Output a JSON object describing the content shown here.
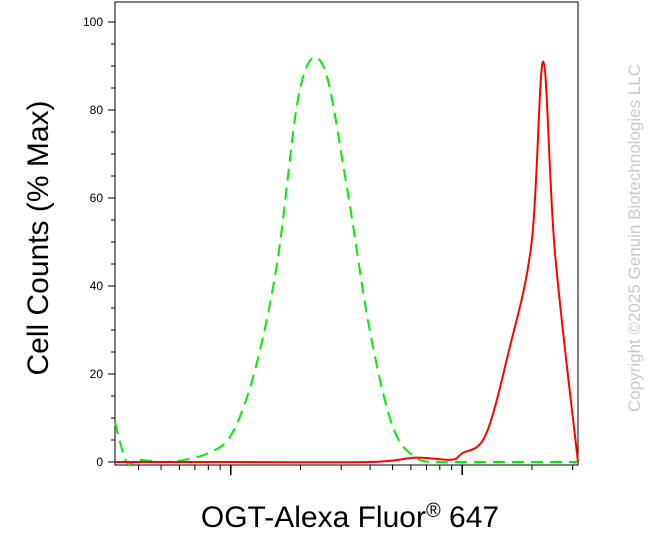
{
  "chart_data": {
    "type": "line",
    "title": "",
    "xlabel_main": "OGT-Alexa Fluor",
    "xlabel_mark": "®",
    "xlabel_tail": " 647",
    "ylabel": "Cell Counts (% Max)",
    "x_scale": "log",
    "ylim": [
      0,
      100
    ],
    "yticks": [
      0,
      20,
      40,
      60,
      80,
      100
    ],
    "ytick_labels": [
      "0",
      "20",
      "40",
      "60",
      "80",
      "100"
    ],
    "x_decades": [
      1,
      10,
      100,
      1000
    ],
    "xlim": [
      0.5,
      2.5
    ],
    "grid": false,
    "series": [
      {
        "style": "dashed",
        "color": "#00ee00",
        "x": [
          0.5,
          0.55,
          0.6,
          0.7,
          0.8,
          0.9,
          1.0,
          1.1,
          1.2,
          1.3,
          1.4,
          1.5,
          1.6,
          1.7,
          1.8,
          1.9,
          2.0,
          2.2,
          2.5
        ],
        "y": [
          9,
          0,
          0.5,
          0,
          0.5,
          2,
          6,
          20,
          45,
          85,
          90,
          63,
          30,
          8,
          1,
          0,
          0,
          0,
          0
        ]
      },
      {
        "style": "solid",
        "color": "#ff0000",
        "x": [
          0.5,
          0.8,
          1.0,
          1.6,
          1.8,
          1.95,
          2.0,
          2.1,
          2.2,
          2.3,
          2.35,
          2.4,
          2.5
        ],
        "y": [
          0,
          0,
          0,
          0,
          1,
          0.5,
          2,
          6,
          25,
          50,
          91,
          48,
          0
        ]
      }
    ]
  },
  "watermark": "Copyright ©2025 Genuin Biotechnologies LLC"
}
